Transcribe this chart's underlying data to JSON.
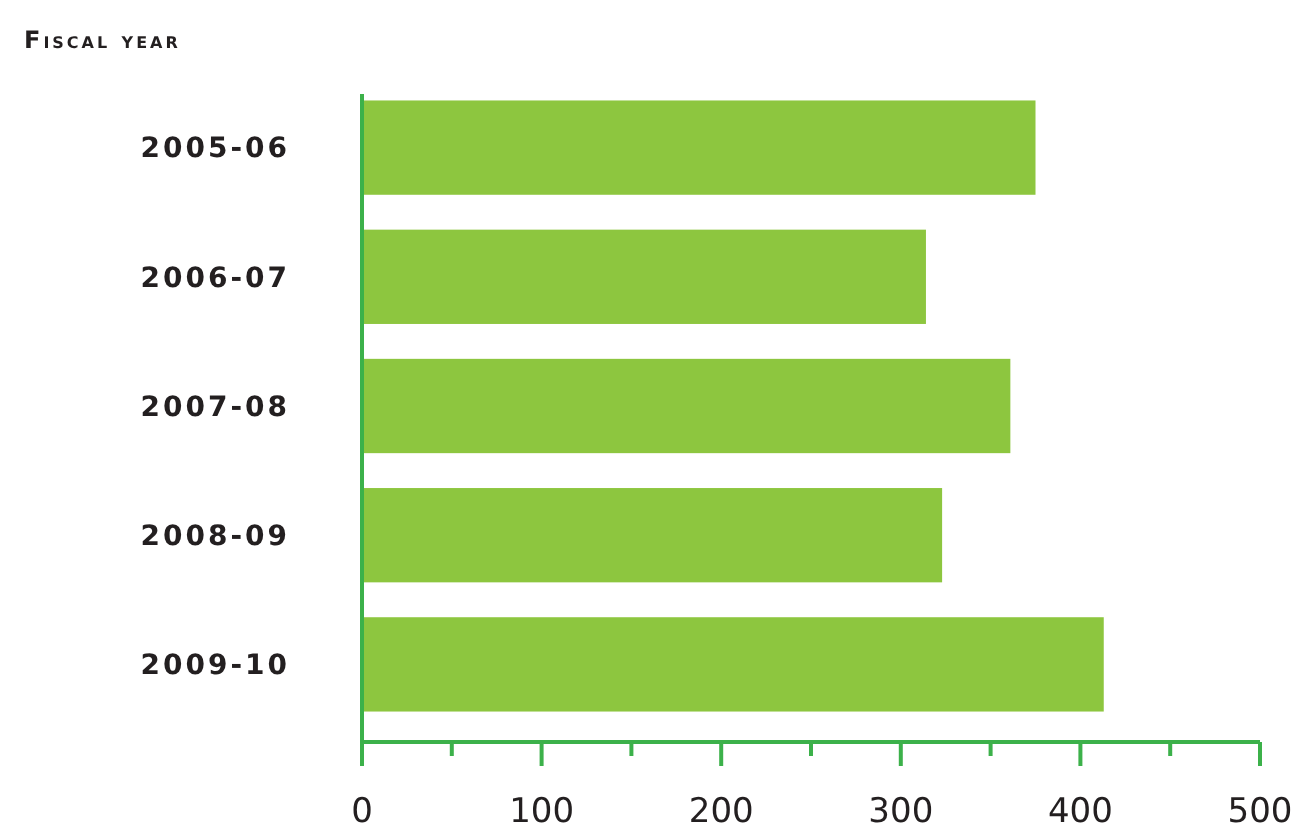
{
  "chart_data": {
    "type": "bar",
    "orientation": "horizontal",
    "ylabel": "Fiscal year",
    "categories": [
      "2005-06",
      "2006-07",
      "2007-08",
      "2008-09",
      "2009-10"
    ],
    "values": [
      375,
      314,
      361,
      323,
      413
    ],
    "color": "#8dc63f",
    "xlim": [
      0,
      500
    ],
    "xticks": [
      0,
      {
        "value": 50,
        "label": null
      },
      100,
      {
        "value": 150,
        "label": null
      },
      200,
      {
        "value": 250,
        "label": null
      },
      300,
      {
        "value": 350,
        "label": null
      },
      400,
      {
        "value": 450,
        "label": null
      },
      500
    ],
    "grid": false
  }
}
